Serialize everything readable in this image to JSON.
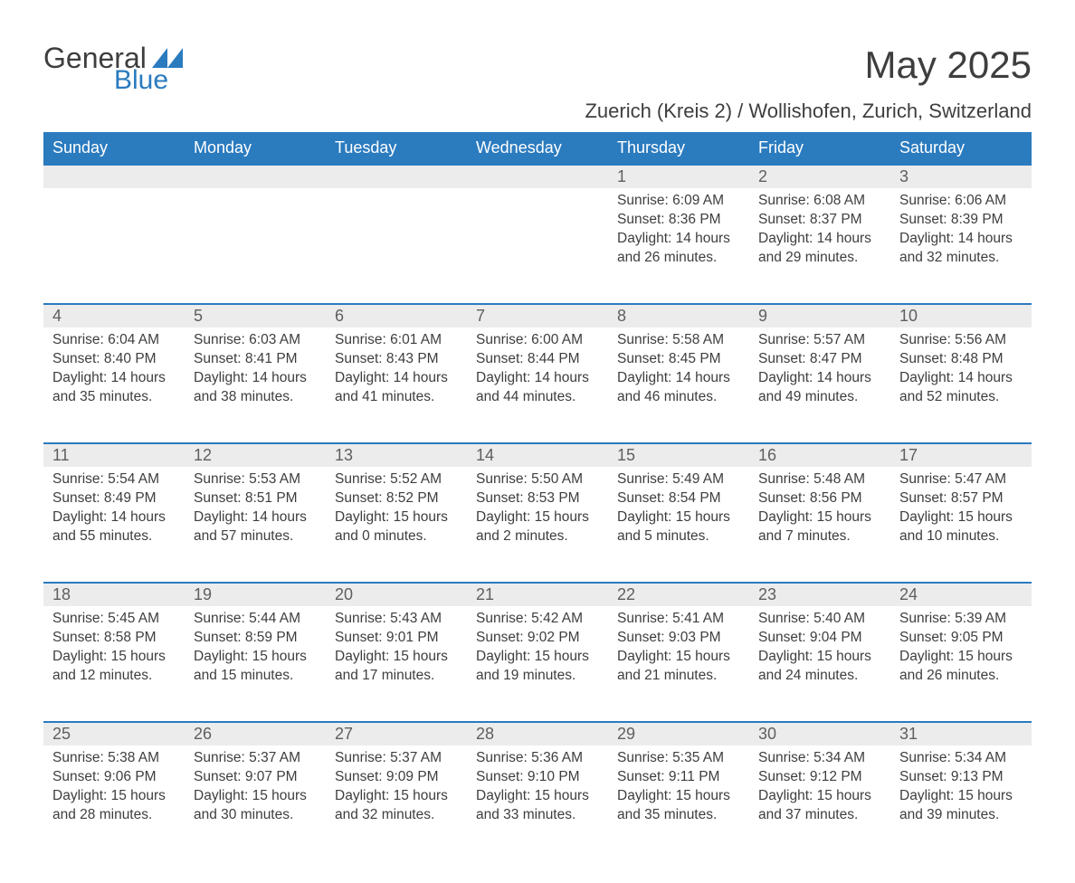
{
  "logo": {
    "word1": "General",
    "word2": "Blue",
    "triangle_color": "#2b7bbf"
  },
  "title": "May 2025",
  "subtitle": "Zuerich (Kreis 2) / Wollishofen, Zurich, Switzerland",
  "colors": {
    "header_bg": "#2b7bbf",
    "header_text": "#ffffff",
    "row_divider": "#2b7bbf",
    "daynum_bg": "#ececec",
    "daynum_text": "#5f5f5f",
    "body_text": "#3e3e3e",
    "page_bg": "#ffffff"
  },
  "layout": {
    "columns": 7,
    "weeks": 5,
    "leading_blanks": 4,
    "body_fontsize": 15.5,
    "header_fontsize": 18,
    "title_fontsize": 42,
    "subtitle_fontsize": 22
  },
  "day_labels": [
    "Sunday",
    "Monday",
    "Tuesday",
    "Wednesday",
    "Thursday",
    "Friday",
    "Saturday"
  ],
  "days": [
    {
      "n": "1",
      "sunrise": "6:09 AM",
      "sunset": "8:36 PM",
      "daylight": "14 hours and 26 minutes."
    },
    {
      "n": "2",
      "sunrise": "6:08 AM",
      "sunset": "8:37 PM",
      "daylight": "14 hours and 29 minutes."
    },
    {
      "n": "3",
      "sunrise": "6:06 AM",
      "sunset": "8:39 PM",
      "daylight": "14 hours and 32 minutes."
    },
    {
      "n": "4",
      "sunrise": "6:04 AM",
      "sunset": "8:40 PM",
      "daylight": "14 hours and 35 minutes."
    },
    {
      "n": "5",
      "sunrise": "6:03 AM",
      "sunset": "8:41 PM",
      "daylight": "14 hours and 38 minutes."
    },
    {
      "n": "6",
      "sunrise": "6:01 AM",
      "sunset": "8:43 PM",
      "daylight": "14 hours and 41 minutes."
    },
    {
      "n": "7",
      "sunrise": "6:00 AM",
      "sunset": "8:44 PM",
      "daylight": "14 hours and 44 minutes."
    },
    {
      "n": "8",
      "sunrise": "5:58 AM",
      "sunset": "8:45 PM",
      "daylight": "14 hours and 46 minutes."
    },
    {
      "n": "9",
      "sunrise": "5:57 AM",
      "sunset": "8:47 PM",
      "daylight": "14 hours and 49 minutes."
    },
    {
      "n": "10",
      "sunrise": "5:56 AM",
      "sunset": "8:48 PM",
      "daylight": "14 hours and 52 minutes."
    },
    {
      "n": "11",
      "sunrise": "5:54 AM",
      "sunset": "8:49 PM",
      "daylight": "14 hours and 55 minutes."
    },
    {
      "n": "12",
      "sunrise": "5:53 AM",
      "sunset": "8:51 PM",
      "daylight": "14 hours and 57 minutes."
    },
    {
      "n": "13",
      "sunrise": "5:52 AM",
      "sunset": "8:52 PM",
      "daylight": "15 hours and 0 minutes."
    },
    {
      "n": "14",
      "sunrise": "5:50 AM",
      "sunset": "8:53 PM",
      "daylight": "15 hours and 2 minutes."
    },
    {
      "n": "15",
      "sunrise": "5:49 AM",
      "sunset": "8:54 PM",
      "daylight": "15 hours and 5 minutes."
    },
    {
      "n": "16",
      "sunrise": "5:48 AM",
      "sunset": "8:56 PM",
      "daylight": "15 hours and 7 minutes."
    },
    {
      "n": "17",
      "sunrise": "5:47 AM",
      "sunset": "8:57 PM",
      "daylight": "15 hours and 10 minutes."
    },
    {
      "n": "18",
      "sunrise": "5:45 AM",
      "sunset": "8:58 PM",
      "daylight": "15 hours and 12 minutes."
    },
    {
      "n": "19",
      "sunrise": "5:44 AM",
      "sunset": "8:59 PM",
      "daylight": "15 hours and 15 minutes."
    },
    {
      "n": "20",
      "sunrise": "5:43 AM",
      "sunset": "9:01 PM",
      "daylight": "15 hours and 17 minutes."
    },
    {
      "n": "21",
      "sunrise": "5:42 AM",
      "sunset": "9:02 PM",
      "daylight": "15 hours and 19 minutes."
    },
    {
      "n": "22",
      "sunrise": "5:41 AM",
      "sunset": "9:03 PM",
      "daylight": "15 hours and 21 minutes."
    },
    {
      "n": "23",
      "sunrise": "5:40 AM",
      "sunset": "9:04 PM",
      "daylight": "15 hours and 24 minutes."
    },
    {
      "n": "24",
      "sunrise": "5:39 AM",
      "sunset": "9:05 PM",
      "daylight": "15 hours and 26 minutes."
    },
    {
      "n": "25",
      "sunrise": "5:38 AM",
      "sunset": "9:06 PM",
      "daylight": "15 hours and 28 minutes."
    },
    {
      "n": "26",
      "sunrise": "5:37 AM",
      "sunset": "9:07 PM",
      "daylight": "15 hours and 30 minutes."
    },
    {
      "n": "27",
      "sunrise": "5:37 AM",
      "sunset": "9:09 PM",
      "daylight": "15 hours and 32 minutes."
    },
    {
      "n": "28",
      "sunrise": "5:36 AM",
      "sunset": "9:10 PM",
      "daylight": "15 hours and 33 minutes."
    },
    {
      "n": "29",
      "sunrise": "5:35 AM",
      "sunset": "9:11 PM",
      "daylight": "15 hours and 35 minutes."
    },
    {
      "n": "30",
      "sunrise": "5:34 AM",
      "sunset": "9:12 PM",
      "daylight": "15 hours and 37 minutes."
    },
    {
      "n": "31",
      "sunrise": "5:34 AM",
      "sunset": "9:13 PM",
      "daylight": "15 hours and 39 minutes."
    }
  ],
  "field_labels": {
    "sunrise": "Sunrise: ",
    "sunset": "Sunset: ",
    "daylight": "Daylight: "
  }
}
